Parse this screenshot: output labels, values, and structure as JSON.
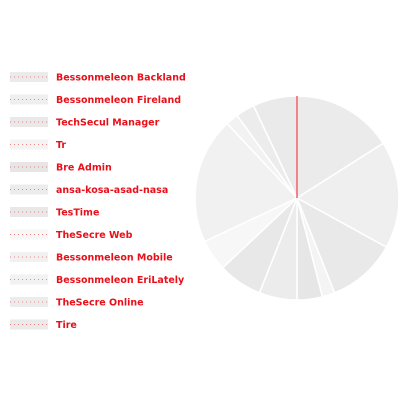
{
  "chart_data": {
    "type": "pie",
    "title": "",
    "legend_position": "left",
    "slice_border_color": "#ffffff",
    "accent_color": "#e8101a",
    "start_angle_deg": 0,
    "direction": "clockwise",
    "slices": [
      {
        "label": "Bessonmeleon Backland",
        "value": 16,
        "color": "#ebebeb"
      },
      {
        "label": "Bessonmeleon Fireland",
        "value": 17,
        "color": "#efefef"
      },
      {
        "label": "TechSecul Manager",
        "value": 11,
        "color": "#e9e9e9"
      },
      {
        "label": "Tr",
        "value": 2,
        "color": "#f4f4f4"
      },
      {
        "label": "Bre Admin",
        "value": 4,
        "color": "#e6e6e6"
      },
      {
        "label": "ansa-kosa-asad-nasa",
        "value": 6,
        "color": "#ececec"
      },
      {
        "label": "TesTime",
        "value": 7,
        "color": "#e8e8e8"
      },
      {
        "label": "TheSecre Web",
        "value": 5,
        "color": "#f7f7f7"
      },
      {
        "label": "Bessonmeleon Mobile",
        "value": 20,
        "color": "#f1f1f1"
      },
      {
        "label": "Bessonmeleon EriLately",
        "value": 2,
        "color": "#f2f2f2"
      },
      {
        "label": "TheSecre Online",
        "value": 3,
        "color": "#ececec"
      },
      {
        "label": "Tire",
        "value": 7,
        "color": "#eaeaea"
      }
    ]
  }
}
